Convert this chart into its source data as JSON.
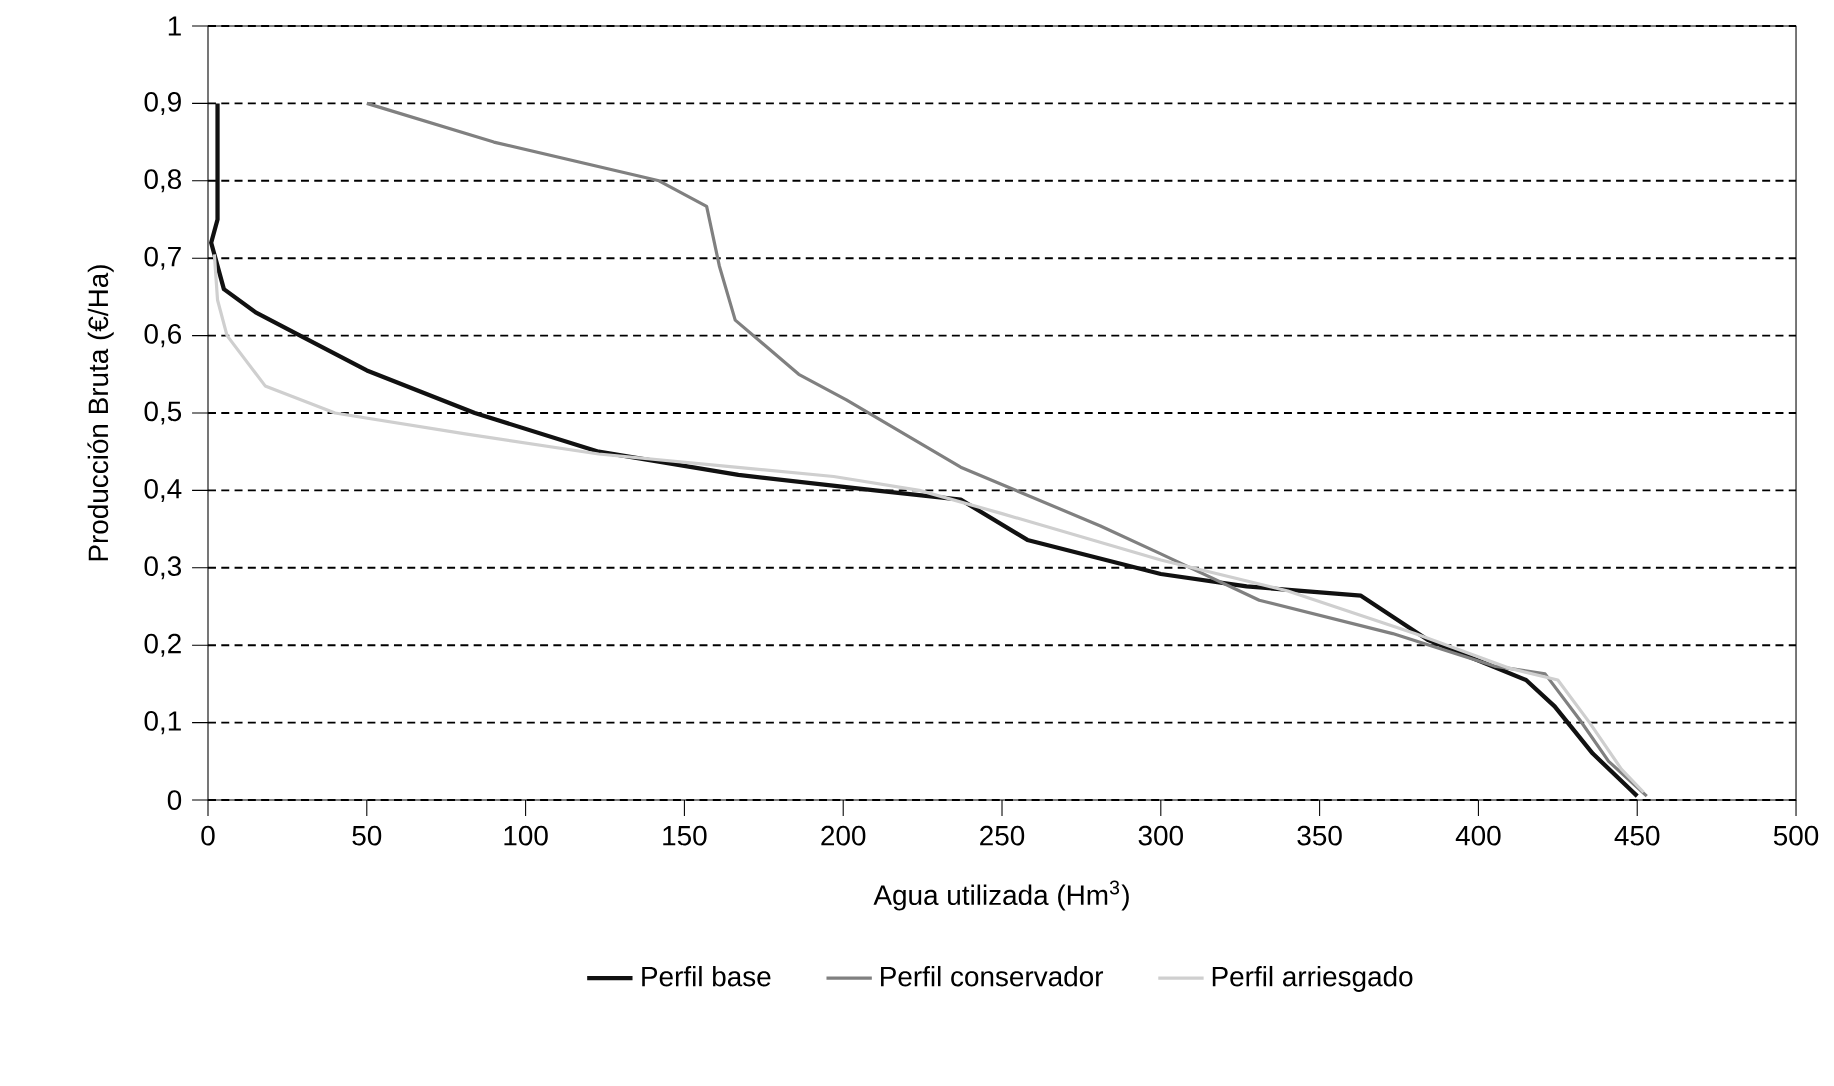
{
  "chart_data": {
    "type": "line",
    "xlabel": "Agua utilizada (Hm$^{3}$)",
    "ylabel": "Producción Bruta (€/Ha)",
    "xlim": [
      0,
      500
    ],
    "xticks": [
      0,
      50,
      100,
      150,
      200,
      250,
      300,
      350,
      400,
      450,
      500
    ],
    "ylim": [
      0,
      1
    ],
    "yticks": [
      {
        "value": 0,
        "label": "0"
      },
      {
        "value": 0.1,
        "label": "0,1"
      },
      {
        "value": 0.2,
        "label": "0,2"
      },
      {
        "value": 0.3,
        "label": "0,3"
      },
      {
        "value": 0.4,
        "label": "0,4"
      },
      {
        "value": 0.5,
        "label": "0,5"
      },
      {
        "value": 0.6,
        "label": "0,6"
      },
      {
        "value": 0.7,
        "label": "0,7"
      },
      {
        "value": 0.8,
        "label": "0,8"
      },
      {
        "value": 0.9,
        "label": "0,9"
      },
      {
        "value": 1,
        "label": "1"
      }
    ],
    "grid": "y",
    "legend": "bottom",
    "marker": "none",
    "series": [
      {
        "name": "Perfil base",
        "color": "#111111",
        "x": [
          3,
          3,
          1,
          5,
          15,
          29,
          50,
          84,
          123,
          167,
          210,
          237,
          258,
          300,
          327,
          363,
          384,
          415,
          424,
          436,
          448,
          450
        ],
        "values": [
          0.9,
          0.75,
          0.72,
          0.66,
          0.63,
          0.6,
          0.555,
          0.5,
          0.45,
          0.42,
          0.4,
          0.388,
          0.336,
          0.292,
          0.276,
          0.264,
          0.207,
          0.155,
          0.121,
          0.06,
          0.013,
          0.005
        ]
      },
      {
        "name": "Perfil conservador",
        "color": "#808080",
        "x": [
          50,
          90,
          142,
          157,
          161,
          166,
          186,
          201,
          237,
          281,
          300,
          331,
          373,
          405,
          421,
          432,
          441,
          453
        ],
        "values": [
          0.9,
          0.85,
          0.8,
          0.767,
          0.69,
          0.62,
          0.55,
          0.517,
          0.43,
          0.354,
          0.318,
          0.258,
          0.215,
          0.173,
          0.163,
          0.103,
          0.05,
          0.005
        ]
      },
      {
        "name": "Perfil arriesgado",
        "color": "#cfcfcf",
        "x": [
          2,
          3,
          6,
          18,
          40,
          81,
          123,
          166,
          197,
          224,
          250,
          300,
          340,
          380,
          410,
          425,
          435,
          445,
          452
        ],
        "values": [
          0.705,
          0.646,
          0.6,
          0.535,
          0.5,
          0.473,
          0.447,
          0.43,
          0.418,
          0.4,
          0.37,
          0.31,
          0.27,
          0.215,
          0.17,
          0.155,
          0.1,
          0.04,
          0.01
        ]
      }
    ]
  }
}
